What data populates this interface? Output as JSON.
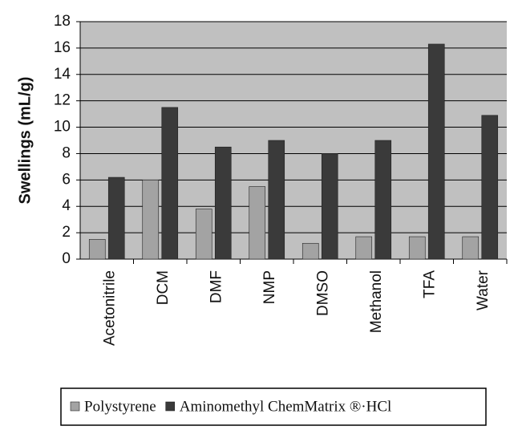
{
  "chart_data": {
    "type": "bar",
    "y_label": "Swellings (mL/g)",
    "categories": [
      "Acetonitrile",
      "DCM",
      "DMF",
      "NMP",
      "DMSO",
      "Methanol",
      "TFA",
      "Water"
    ],
    "series": [
      {
        "name": "Polystyrene",
        "color": "#a3a3a3",
        "values": [
          1.5,
          6.0,
          3.8,
          5.5,
          1.2,
          1.7,
          1.7,
          1.7
        ]
      },
      {
        "name": "Aminomethyl ChemMatrix ®·HCl",
        "color": "#3a3a3a",
        "values": [
          6.2,
          11.5,
          8.5,
          9.0,
          8.0,
          9.0,
          16.3,
          10.9
        ]
      }
    ],
    "ylim": [
      0,
      18
    ],
    "yticks": [
      0,
      2,
      4,
      6,
      8,
      10,
      12,
      14,
      16,
      18
    ],
    "grid": true
  }
}
